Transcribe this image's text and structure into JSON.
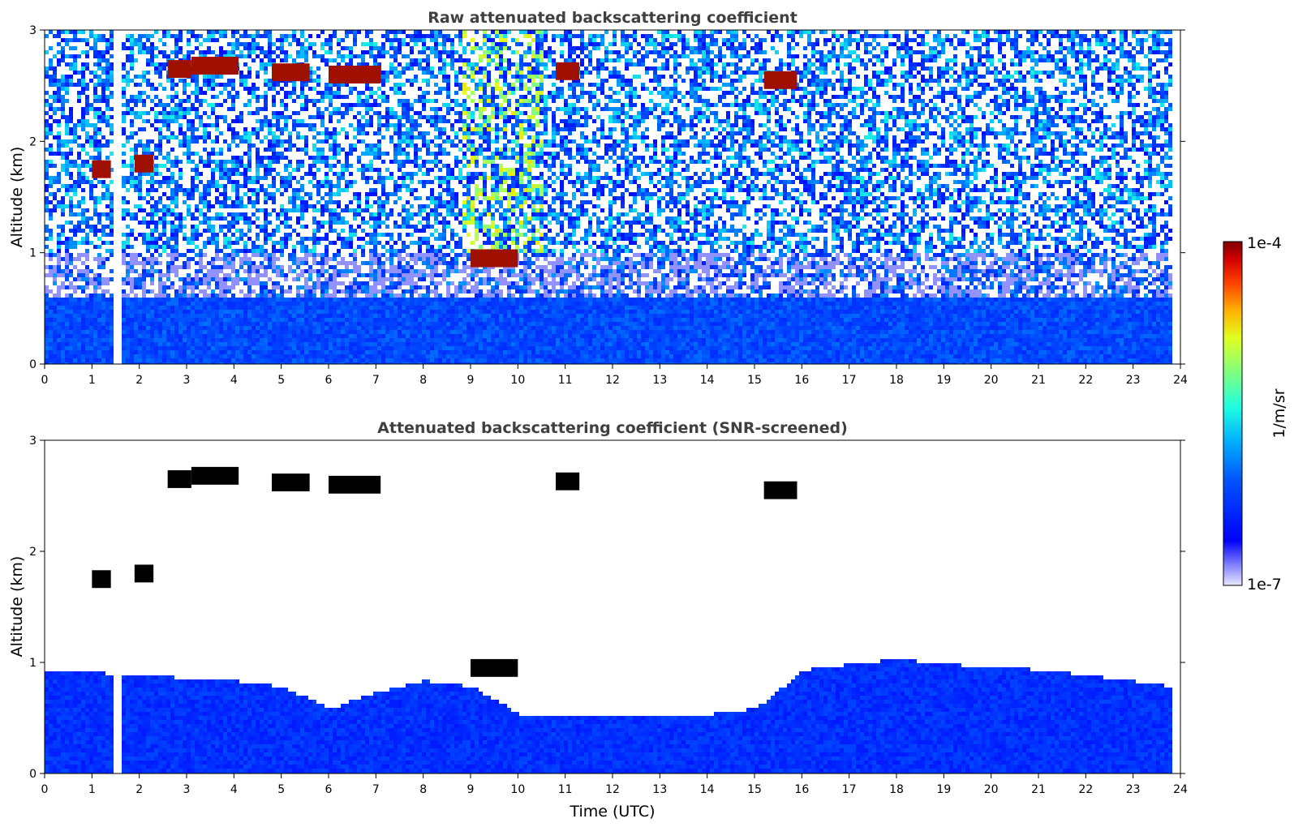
{
  "figure": {
    "colorbar": {
      "max_label": "1e-4",
      "min_label": "1e-7",
      "unit_label": "1/m/sr",
      "scale": "log",
      "range": [
        1e-07,
        0.0001
      ],
      "colormap": "jet"
    }
  },
  "chart_data": [
    {
      "type": "heatmap",
      "title": "Raw attenuated backscattering coefficient",
      "xlabel": "",
      "ylabel": "Altitude (km)",
      "xlim": [
        0,
        24
      ],
      "ylim": [
        0,
        3
      ],
      "xticks": [
        "0",
        "1",
        "2",
        "3",
        "4",
        "5",
        "6",
        "7",
        "8",
        "9",
        "10",
        "11",
        "12",
        "13",
        "14",
        "15",
        "16",
        "17",
        "18",
        "19",
        "20",
        "21",
        "22",
        "23",
        "24"
      ],
      "yticks": [
        "0",
        "1",
        "2",
        "3"
      ],
      "data_gap_utc": [
        1.45,
        1.55
      ],
      "data_end_utc": 23.8,
      "cloud_layers": [
        {
          "t_start": 2.6,
          "t_end": 3.1,
          "alt_km": 2.65
        },
        {
          "t_start": 3.1,
          "t_end": 4.1,
          "alt_km": 2.68
        },
        {
          "t_start": 4.8,
          "t_end": 5.6,
          "alt_km": 2.62
        },
        {
          "t_start": 6.0,
          "t_end": 7.1,
          "alt_km": 2.6
        },
        {
          "t_start": 10.8,
          "t_end": 11.3,
          "alt_km": 2.63
        },
        {
          "t_start": 15.2,
          "t_end": 15.9,
          "alt_km": 2.55
        },
        {
          "t_start": 1.0,
          "t_end": 1.4,
          "alt_km": 1.75
        },
        {
          "t_start": 1.9,
          "t_end": 2.3,
          "alt_km": 1.8
        },
        {
          "t_start": 9.0,
          "t_end": 10.0,
          "alt_km": 0.95
        }
      ],
      "boundary_layer_top_km": 0.6
    },
    {
      "type": "heatmap",
      "title": "Attenuated backscattering coefficient (SNR-screened)",
      "xlabel": "Time (UTC)",
      "ylabel": "Altitude (km)",
      "xlim": [
        0,
        24
      ],
      "ylim": [
        0,
        3
      ],
      "xticks": [
        "0",
        "1",
        "2",
        "3",
        "4",
        "5",
        "6",
        "7",
        "8",
        "9",
        "10",
        "11",
        "12",
        "13",
        "14",
        "15",
        "16",
        "17",
        "18",
        "19",
        "20",
        "21",
        "22",
        "23",
        "24"
      ],
      "yticks": [
        "0",
        "1",
        "2",
        "3"
      ],
      "data_gap_utc": [
        1.45,
        1.55
      ],
      "data_end_utc": 23.8,
      "valid_data_top_km": [
        [
          0,
          0.95
        ],
        [
          2,
          0.9
        ],
        [
          4,
          0.85
        ],
        [
          5,
          0.8
        ],
        [
          6,
          0.6
        ],
        [
          7,
          0.75
        ],
        [
          8,
          0.85
        ],
        [
          9,
          0.8
        ],
        [
          10,
          0.55
        ],
        [
          12,
          0.55
        ],
        [
          14,
          0.55
        ],
        [
          15,
          0.6
        ],
        [
          16,
          0.95
        ],
        [
          17,
          1.0
        ],
        [
          18,
          1.05
        ],
        [
          19,
          1.0
        ],
        [
          21,
          0.95
        ],
        [
          23,
          0.85
        ],
        [
          23.8,
          0.8
        ]
      ]
    }
  ]
}
